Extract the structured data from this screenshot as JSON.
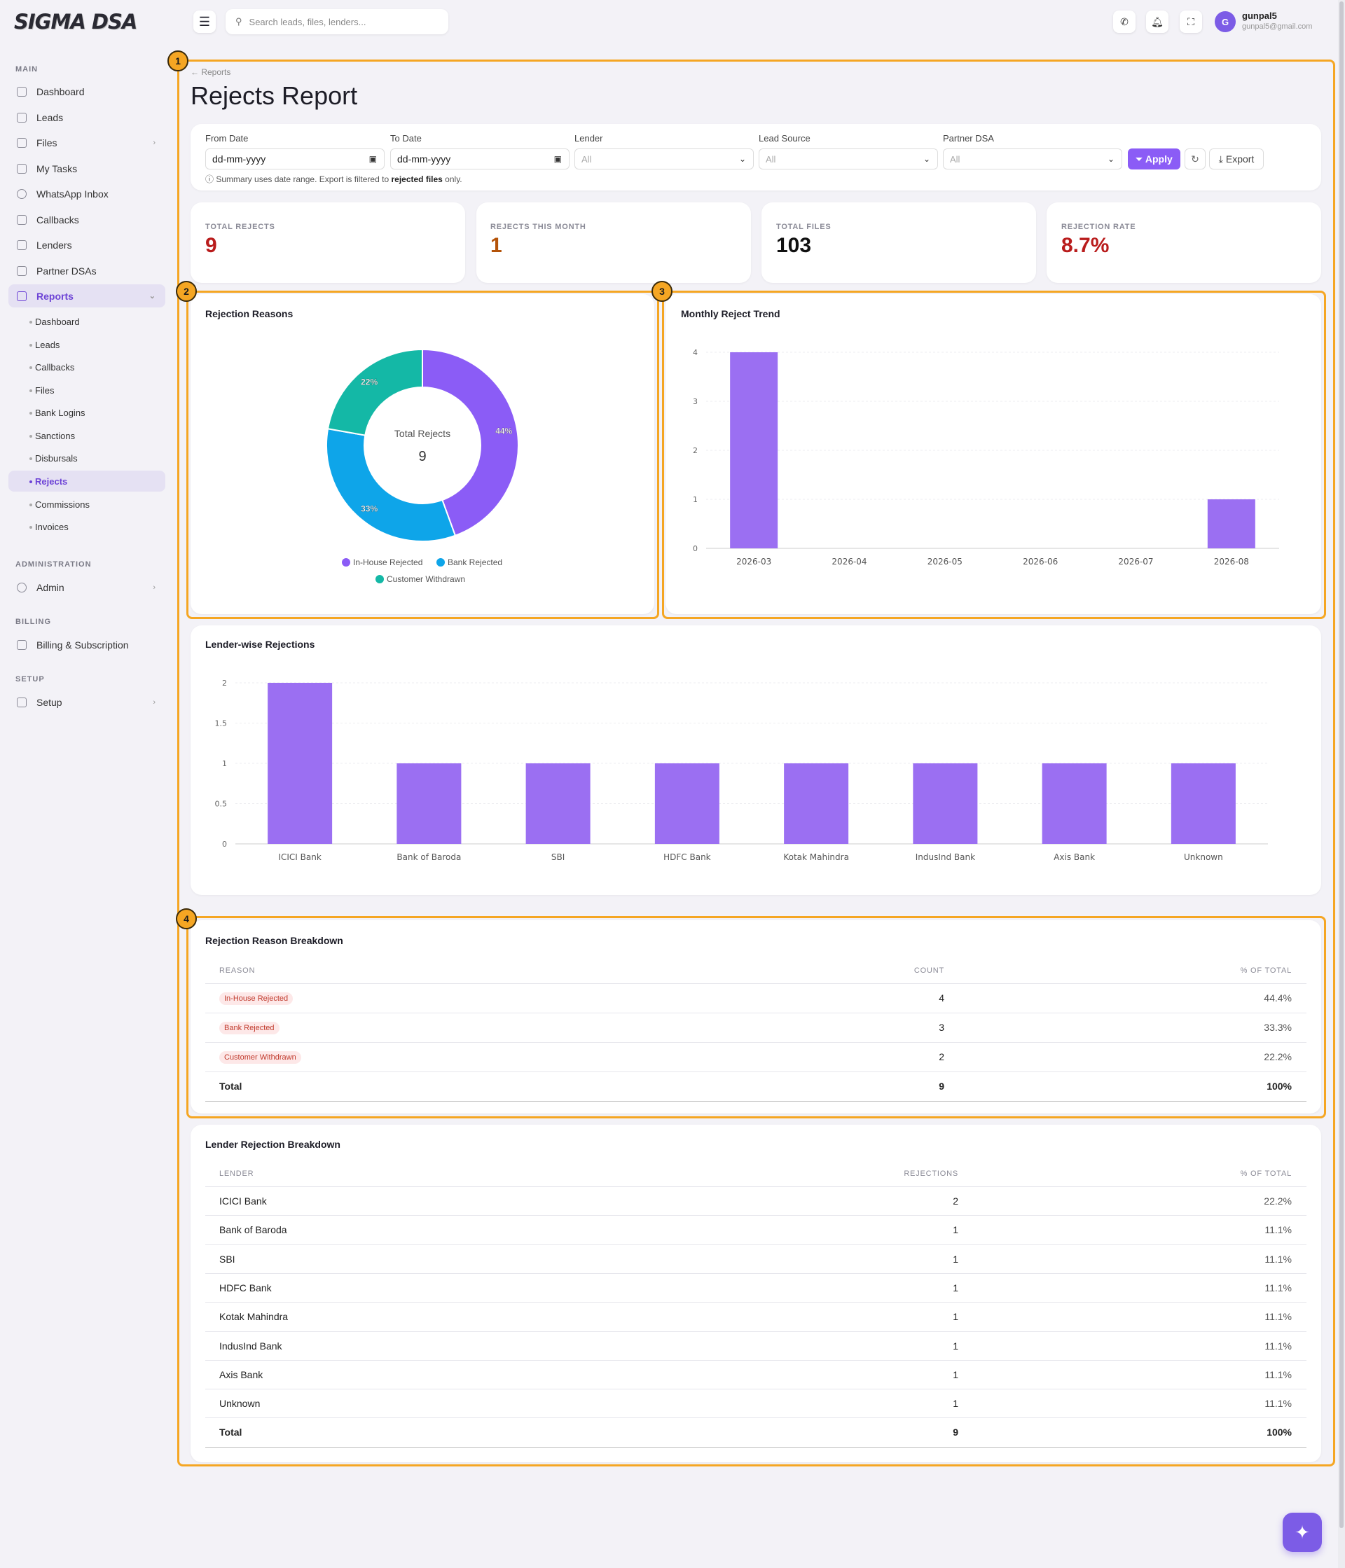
{
  "app": {
    "logo": "SIGMA DSA"
  },
  "sidebar": {
    "sections": {
      "main": "MAIN",
      "administration": "ADMINISTRATION",
      "billing": "BILLING",
      "setup": "SETUP"
    },
    "items": [
      {
        "label": "Dashboard",
        "icon": "home-icon"
      },
      {
        "label": "Leads",
        "icon": "users-icon"
      },
      {
        "label": "Files",
        "icon": "file-icon"
      },
      {
        "label": "My Tasks",
        "icon": "tasks-icon"
      },
      {
        "label": "WhatsApp Inbox",
        "icon": "whatsapp-icon"
      },
      {
        "label": "Callbacks",
        "icon": "phone-icon"
      },
      {
        "label": "Lenders",
        "icon": "bank-icon"
      },
      {
        "label": "Partner DSAs",
        "icon": "partners-icon"
      },
      {
        "label": "Reports",
        "icon": "chart-icon"
      }
    ],
    "report_subitems": [
      "Dashboard",
      "Leads",
      "Callbacks",
      "Files",
      "Bank Logins",
      "Sanctions",
      "Disbursals",
      "Rejects",
      "Commissions",
      "Invoices"
    ],
    "admin": "Admin",
    "billing": "Billing & Subscription",
    "setup": "Setup"
  },
  "topbar": {
    "search_placeholder": "Search leads, files, lenders...",
    "user_initial": "G",
    "user_name": "gunpal5",
    "user_email": "gunpal5@gmail.com"
  },
  "annotations": [
    "1",
    "2",
    "3",
    "4"
  ],
  "page": {
    "breadcrumb": "← Reports",
    "title": "Rejects Report"
  },
  "filters": {
    "from_label": "From Date",
    "from_value": "dd-mm-yyyy",
    "to_label": "To Date",
    "to_value": "dd-mm-yyyy",
    "lender_label": "Lender",
    "lender_value": "All",
    "source_label": "Lead Source",
    "source_value": "All",
    "partner_label": "Partner DSA",
    "partner_value": "All",
    "apply": "Apply",
    "export": "Export",
    "note_prefix": "Summary uses date range. Export is filtered to ",
    "note_bold": "rejected files",
    "note_suffix": " only."
  },
  "stats": [
    {
      "label": "TOTAL REJECTS",
      "value": "9",
      "color": "#b91c1c"
    },
    {
      "label": "REJECTS THIS MONTH",
      "value": "1",
      "color": "#b45309"
    },
    {
      "label": "TOTAL FILES",
      "value": "103",
      "color": "#111111"
    },
    {
      "label": "REJECTION RATE",
      "value": "8.7%",
      "color": "#b91c1c"
    }
  ],
  "chart_data": [
    {
      "type": "pie",
      "title": "Rejection Reasons",
      "center_label": "Total Rejects",
      "center_value": "9",
      "categories": [
        "In-House Rejected",
        "Bank Rejected",
        "Customer Withdrawn"
      ],
      "values": [
        4,
        3,
        2
      ],
      "percent_labels": [
        "44%",
        "33%",
        "22%"
      ],
      "colors": [
        "#8b5cf6",
        "#0ea5e9",
        "#14b8a6"
      ],
      "legend": "bottom"
    },
    {
      "type": "bar",
      "title": "Monthly Reject Trend",
      "categories": [
        "2026-03",
        "2026-04",
        "2026-05",
        "2026-06",
        "2026-07",
        "2026-08"
      ],
      "values": [
        4,
        0,
        0,
        0,
        0,
        1
      ],
      "yticks": [
        "0",
        "1",
        "2",
        "3",
        "4"
      ],
      "ylim": [
        0,
        4
      ],
      "color": "#9b6ff2",
      "grid": true
    },
    {
      "type": "bar",
      "title": "Lender-wise Rejections",
      "categories": [
        "ICICI Bank",
        "Bank of Baroda",
        "SBI",
        "HDFC Bank",
        "Kotak Mahindra",
        "IndusInd Bank",
        "Axis Bank",
        "Unknown"
      ],
      "values": [
        2,
        1,
        1,
        1,
        1,
        1,
        1,
        1
      ],
      "yticks": [
        "0",
        "0.5",
        "1",
        "1.5",
        "2"
      ],
      "ylim": [
        0,
        2
      ],
      "color": "#9b6ff2",
      "grid": true
    }
  ],
  "reason_table": {
    "title": "Rejection Reason Breakdown",
    "headers": [
      "REASON",
      "COUNT",
      "% OF TOTAL"
    ],
    "rows": [
      {
        "reason": "In-House Rejected",
        "count": "4",
        "pct": "44.4%"
      },
      {
        "reason": "Bank Rejected",
        "count": "3",
        "pct": "33.3%"
      },
      {
        "reason": "Customer Withdrawn",
        "count": "2",
        "pct": "22.2%"
      }
    ],
    "total": {
      "label": "Total",
      "count": "9",
      "pct": "100%"
    }
  },
  "lender_table": {
    "title": "Lender Rejection Breakdown",
    "headers": [
      "LENDER",
      "REJECTIONS",
      "% OF TOTAL"
    ],
    "rows": [
      {
        "lender": "ICICI Bank",
        "count": "2",
        "pct": "22.2%"
      },
      {
        "lender": "Bank of Baroda",
        "count": "1",
        "pct": "11.1%"
      },
      {
        "lender": "SBI",
        "count": "1",
        "pct": "11.1%"
      },
      {
        "lender": "HDFC Bank",
        "count": "1",
        "pct": "11.1%"
      },
      {
        "lender": "Kotak Mahindra",
        "count": "1",
        "pct": "11.1%"
      },
      {
        "lender": "IndusInd Bank",
        "count": "1",
        "pct": "11.1%"
      },
      {
        "lender": "Axis Bank",
        "count": "1",
        "pct": "11.1%"
      },
      {
        "lender": "Unknown",
        "count": "1",
        "pct": "11.1%"
      }
    ],
    "total": {
      "label": "Total",
      "count": "9",
      "pct": "100%"
    }
  }
}
